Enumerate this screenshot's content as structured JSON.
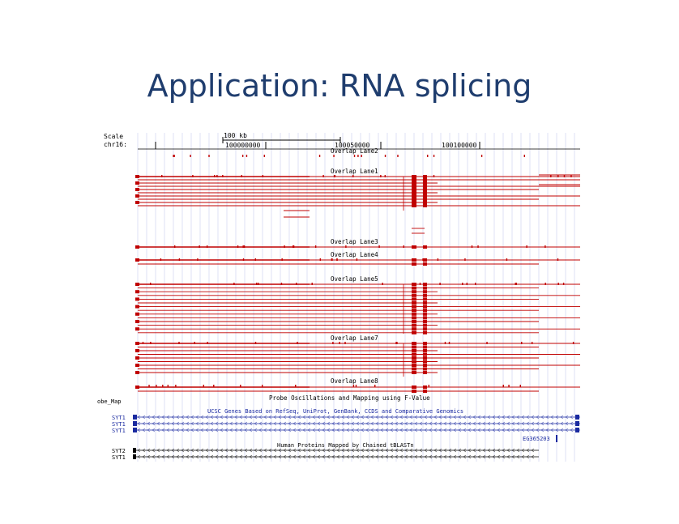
{
  "slide": {
    "title": "Application: RNA splicing"
  },
  "browser": {
    "row_labels": {
      "scale": "Scale",
      "chrom": "chr16:",
      "probe": "obe_Map"
    },
    "scale_bar": "100 kb",
    "positions": [
      "100000000",
      "100050000",
      "100100000"
    ],
    "tracks": [
      {
        "id": "lane2",
        "label": "Overlap Lane2"
      },
      {
        "id": "lane1",
        "label": "Overlap Lane1"
      },
      {
        "id": "lane3",
        "label": "Overlap Lane3"
      },
      {
        "id": "lane4",
        "label": "Overlap Lane4"
      },
      {
        "id": "lane5",
        "label": "Overlap Lane5"
      },
      {
        "id": "lane7",
        "label": "Overlap Lane7"
      },
      {
        "id": "lane8",
        "label": "Overlap Lane8"
      }
    ],
    "probe_title": "Probe Oscillations and Mapping using F-Value",
    "ucsc_title": "UCSC Genes Based on RefSeq, UniProt, GenBank, CCDS and Comparative Genomics",
    "gene_labels": [
      "SYT1",
      "SYT1",
      "SYT1"
    ],
    "extra_gene": "EG365203",
    "human_title": "Human Proteins Mapped by Chained tBLASTn",
    "human_labels": [
      "SYT2",
      "SYT1"
    ],
    "colors": {
      "title": "#1f3d6e",
      "red": "#c00000",
      "blue": "#1a2aa0",
      "grid": "#c9cbee"
    }
  }
}
